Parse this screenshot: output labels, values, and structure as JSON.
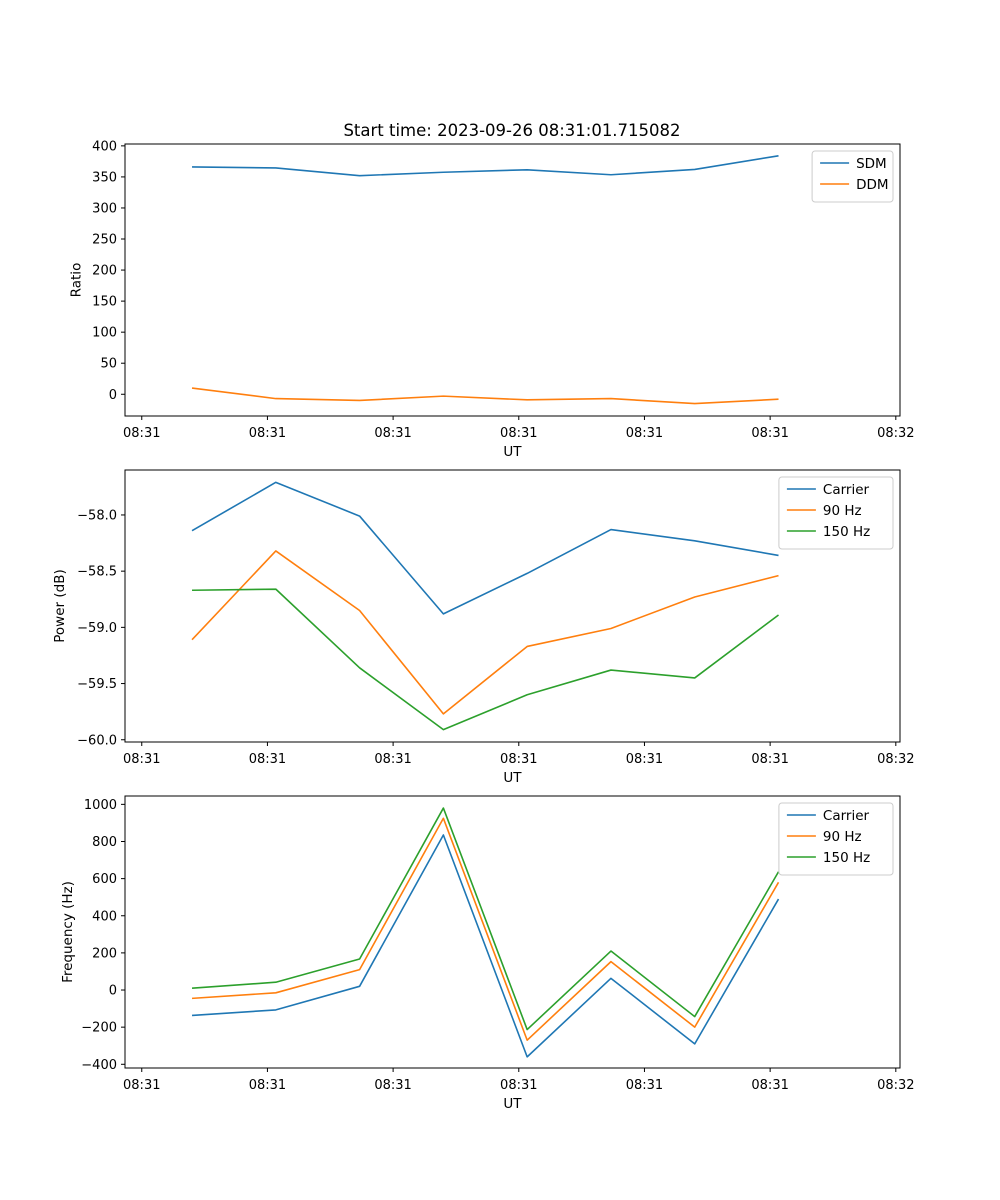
{
  "figure": {
    "title": "Start time: 2023-09-26 08:31:01.715082"
  },
  "colors": {
    "blue": "#1f77b4",
    "orange": "#ff7f0e",
    "green": "#2ca02c",
    "axis": "#000000",
    "legend_border": "#cccccc"
  },
  "chart_data": [
    {
      "type": "line",
      "xlabel": "UT",
      "ylabel": "Ratio",
      "x": [
        1,
        2,
        3,
        4,
        5,
        6,
        7,
        8
      ],
      "xlim": [
        0.2,
        9.45
      ],
      "xticks": [
        0.4,
        1.9,
        3.4,
        4.9,
        6.4,
        7.9,
        9.4
      ],
      "xtick_labels": [
        "08:31",
        "08:31",
        "08:31",
        "08:31",
        "08:31",
        "08:31",
        "08:32"
      ],
      "ylim": [
        -35,
        403
      ],
      "yticks": [
        0,
        50,
        100,
        150,
        200,
        250,
        300,
        350,
        400
      ],
      "ytick_labels": [
        "0",
        "50",
        "100",
        "150",
        "200",
        "250",
        "300",
        "350",
        "400"
      ],
      "legend_position": "upper right",
      "series": [
        {
          "name": "SDM",
          "color": "#1f77b4",
          "values": [
            366,
            364.5,
            352,
            357.5,
            361.5,
            353.5,
            362,
            384
          ]
        },
        {
          "name": "DDM",
          "color": "#ff7f0e",
          "values": [
            10,
            -7,
            -10,
            -3,
            -9,
            -7,
            -15,
            -8
          ]
        }
      ]
    },
    {
      "type": "line",
      "xlabel": "UT",
      "ylabel": "Power (dB)",
      "x": [
        1,
        2,
        3,
        4,
        5,
        6,
        7,
        8
      ],
      "xlim": [
        0.2,
        9.45
      ],
      "xticks": [
        0.4,
        1.9,
        3.4,
        4.9,
        6.4,
        7.9,
        9.4
      ],
      "xtick_labels": [
        "08:31",
        "08:31",
        "08:31",
        "08:31",
        "08:31",
        "08:31",
        "08:32"
      ],
      "ylim": [
        -60.02,
        -57.6
      ],
      "yticks": [
        -60.0,
        -59.5,
        -59.0,
        -58.5,
        -58.0
      ],
      "ytick_labels": [
        "−60.0",
        "−59.5",
        "−59.0",
        "−58.5",
        "−58.0"
      ],
      "legend_position": "upper right",
      "series": [
        {
          "name": "Carrier",
          "color": "#1f77b4",
          "values": [
            -58.14,
            -57.71,
            -58.01,
            -58.88,
            -58.52,
            -58.13,
            -58.23,
            -58.36
          ]
        },
        {
          "name": "90 Hz",
          "color": "#ff7f0e",
          "values": [
            -59.11,
            -58.32,
            -58.85,
            -59.77,
            -59.17,
            -59.01,
            -58.73,
            -58.54
          ]
        },
        {
          "name": "150 Hz",
          "color": "#2ca02c",
          "values": [
            -58.67,
            -58.66,
            -59.36,
            -59.91,
            -59.6,
            -59.38,
            -59.45,
            -58.89
          ]
        }
      ]
    },
    {
      "type": "line",
      "xlabel": "UT",
      "ylabel": "Frequency (Hz)",
      "x": [
        1,
        2,
        3,
        4,
        5,
        6,
        7,
        8
      ],
      "xlim": [
        0.2,
        9.45
      ],
      "xticks": [
        0.4,
        1.9,
        3.4,
        4.9,
        6.4,
        7.9,
        9.4
      ],
      "xtick_labels": [
        "08:31",
        "08:31",
        "08:31",
        "08:31",
        "08:31",
        "08:31",
        "08:32"
      ],
      "ylim": [
        -420,
        1045
      ],
      "yticks": [
        -400,
        -200,
        0,
        200,
        400,
        600,
        800,
        1000
      ],
      "ytick_labels": [
        "−400",
        "−200",
        "0",
        "200",
        "400",
        "600",
        "800",
        "1000"
      ],
      "legend_position": "upper right",
      "series": [
        {
          "name": "Carrier",
          "color": "#1f77b4",
          "values": [
            -137,
            -107,
            20,
            835,
            -360,
            63,
            -290,
            490
          ]
        },
        {
          "name": "90 Hz",
          "color": "#ff7f0e",
          "values": [
            -45,
            -15,
            110,
            925,
            -270,
            153,
            -200,
            580
          ]
        },
        {
          "name": "150 Hz",
          "color": "#2ca02c",
          "values": [
            10,
            42,
            167,
            980,
            -213,
            210,
            -143,
            637
          ]
        }
      ]
    }
  ]
}
